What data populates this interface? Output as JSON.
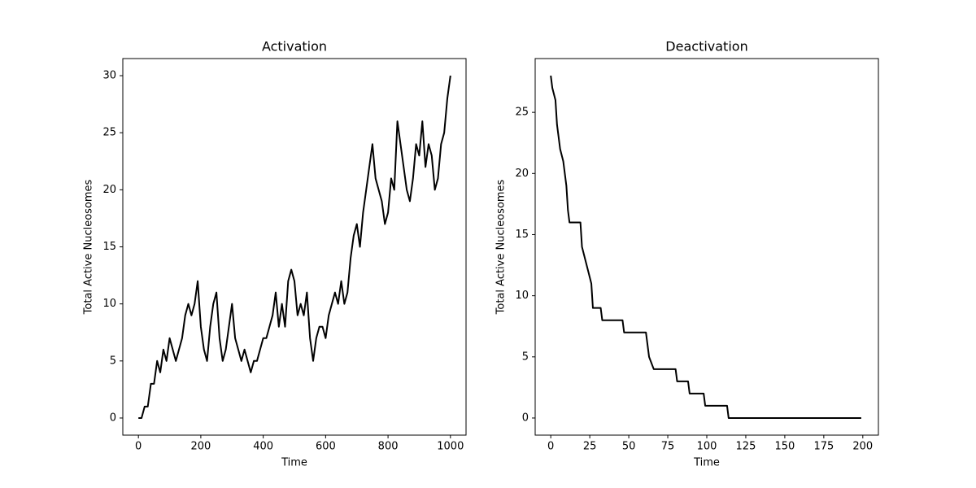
{
  "chart_data": [
    {
      "type": "line",
      "title": "Activation",
      "xlabel": "Time",
      "ylabel": "Total Active Nucleosomes",
      "xlim": [
        -50,
        1050
      ],
      "ylim": [
        -1.5,
        31.5
      ],
      "xticks": [
        0,
        200,
        400,
        600,
        800,
        1000
      ],
      "yticks": [
        0,
        5,
        10,
        15,
        20,
        25,
        30
      ],
      "series": [
        {
          "color": "#000000",
          "x": [
            0,
            10,
            20,
            30,
            40,
            50,
            60,
            70,
            80,
            90,
            100,
            110,
            120,
            130,
            140,
            150,
            160,
            170,
            180,
            190,
            200,
            210,
            220,
            230,
            240,
            250,
            260,
            270,
            280,
            290,
            300,
            310,
            320,
            330,
            340,
            350,
            360,
            370,
            380,
            390,
            400,
            410,
            420,
            430,
            440,
            450,
            460,
            470,
            480,
            490,
            500,
            510,
            520,
            530,
            540,
            550,
            560,
            570,
            580,
            590,
            600,
            610,
            620,
            630,
            640,
            650,
            660,
            670,
            680,
            690,
            700,
            710,
            720,
            730,
            740,
            750,
            760,
            770,
            780,
            790,
            800,
            810,
            820,
            830,
            840,
            850,
            860,
            870,
            880,
            890,
            900,
            910,
            920,
            930,
            940,
            950,
            960,
            970,
            980,
            990,
            1000
          ],
          "values": [
            0,
            0,
            1,
            1,
            3,
            3,
            5,
            4,
            6,
            5,
            7,
            6,
            5,
            6,
            7,
            9,
            10,
            9,
            10,
            12,
            8,
            6,
            5,
            8,
            10,
            11,
            7,
            5,
            6,
            8,
            10,
            7,
            6,
            5,
            6,
            5,
            4,
            5,
            5,
            6,
            7,
            7,
            8,
            9,
            11,
            8,
            10,
            8,
            12,
            13,
            12,
            9,
            10,
            9,
            11,
            7,
            5,
            7,
            8,
            8,
            7,
            9,
            10,
            11,
            10,
            12,
            10,
            11,
            14,
            16,
            17,
            15,
            18,
            20,
            22,
            24,
            21,
            20,
            19,
            17,
            18,
            21,
            20,
            26,
            24,
            22,
            20,
            19,
            21,
            24,
            23,
            26,
            22,
            24,
            23,
            20,
            21,
            24,
            25,
            28,
            30
          ]
        }
      ]
    },
    {
      "type": "line",
      "title": "Deactivation",
      "xlabel": "Time",
      "ylabel": "Total Active Nucleosomes",
      "xlim": [
        -10,
        210
      ],
      "ylim": [
        -1.4,
        29.4
      ],
      "xticks": [
        0,
        25,
        50,
        75,
        100,
        125,
        150,
        175,
        200
      ],
      "yticks": [
        0,
        5,
        10,
        15,
        20,
        25
      ],
      "series": [
        {
          "color": "#000000",
          "x": [
            0,
            1,
            3,
            4,
            6,
            8,
            10,
            11,
            12,
            19,
            20,
            22,
            24,
            26,
            27,
            32,
            33,
            46,
            47,
            61,
            63,
            66,
            80,
            81,
            88,
            89,
            98,
            99,
            113,
            114,
            199
          ],
          "values": [
            28,
            27,
            26,
            24,
            22,
            21,
            19,
            17,
            16,
            16,
            14,
            13,
            12,
            11,
            9,
            9,
            8,
            8,
            7,
            7,
            5,
            4,
            4,
            3,
            3,
            2,
            2,
            1,
            1,
            0,
            0
          ]
        }
      ]
    }
  ]
}
